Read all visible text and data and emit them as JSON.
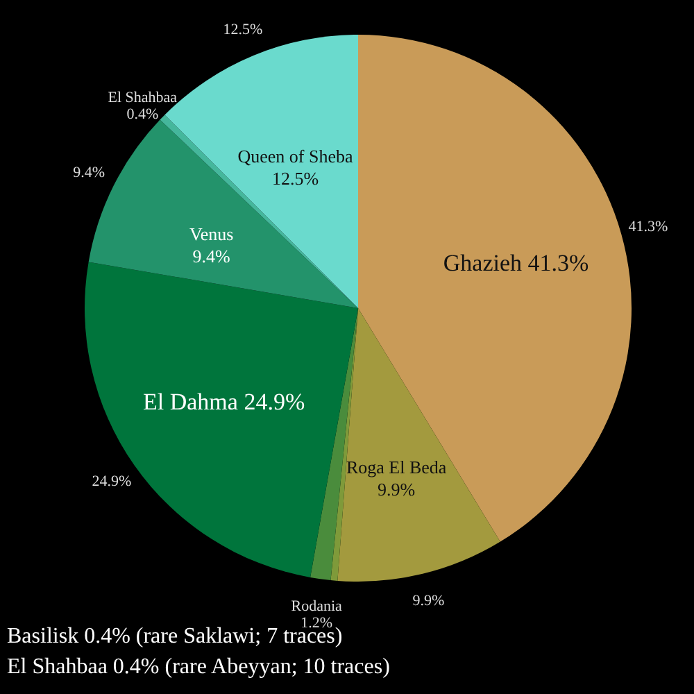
{
  "chart_data": {
    "type": "pie",
    "categories": [
      "Ghazieh",
      "Roga El Beda",
      null,
      "Rodania",
      "El Dahma",
      "Venus",
      "El Shahbaa",
      "Queen of Sheba"
    ],
    "values": [
      41.3,
      9.9,
      0.4,
      1.2,
      24.9,
      9.4,
      0.4,
      12.5
    ],
    "colors": [
      "#c99b58",
      "#a39a3e",
      "#7f9a3a",
      "#4a8c3c",
      "#00753c",
      "#23936b",
      "#45b79c",
      "#6adacd"
    ],
    "value_labels": [
      "41.3%",
      "9.9%",
      null,
      "1.2%",
      "24.9%",
      "9.4%",
      "0.4%",
      "12.5%"
    ],
    "annotations": [
      "Basilisk 0.4% (rare Saklawi; 7 traces)",
      "El Shahbaa 0.4% (rare Abeyyan; 10 traces)"
    ]
  }
}
